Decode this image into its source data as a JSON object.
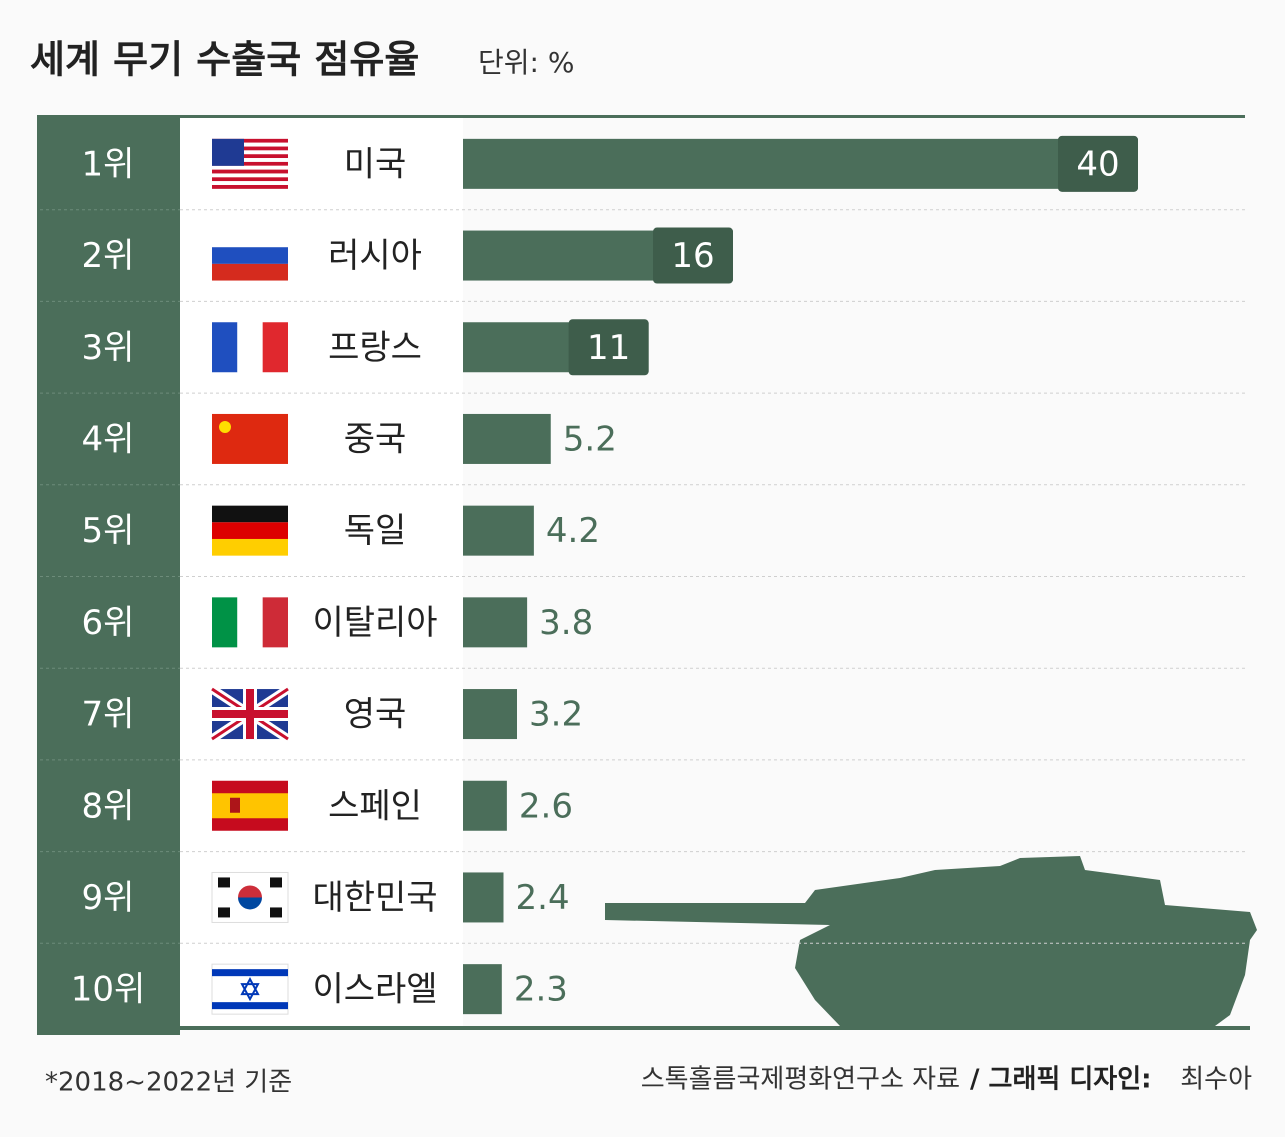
{
  "chart_data": {
    "type": "bar",
    "title": "세계 무기 수출국 점유율",
    "unit": "단위: %",
    "ranks": [
      "1위",
      "2위",
      "3위",
      "4위",
      "5위",
      "6위",
      "7위",
      "8위",
      "9위",
      "10위"
    ],
    "categories": [
      "미국",
      "러시아",
      "프랑스",
      "중국",
      "독일",
      "이탈리아",
      "영국",
      "스페인",
      "대한민국",
      "이스라엘"
    ],
    "values": [
      40,
      16,
      11,
      5.2,
      4.2,
      3.8,
      3.2,
      2.6,
      2.4,
      2.3
    ],
    "color": "#4b6e5a",
    "footnote": "*2018~2022년 기준",
    "source": "스톡홀름국제평화연구소 자료",
    "credit_label": "/ 그래픽 디자인:",
    "credit_name": "최수아"
  }
}
